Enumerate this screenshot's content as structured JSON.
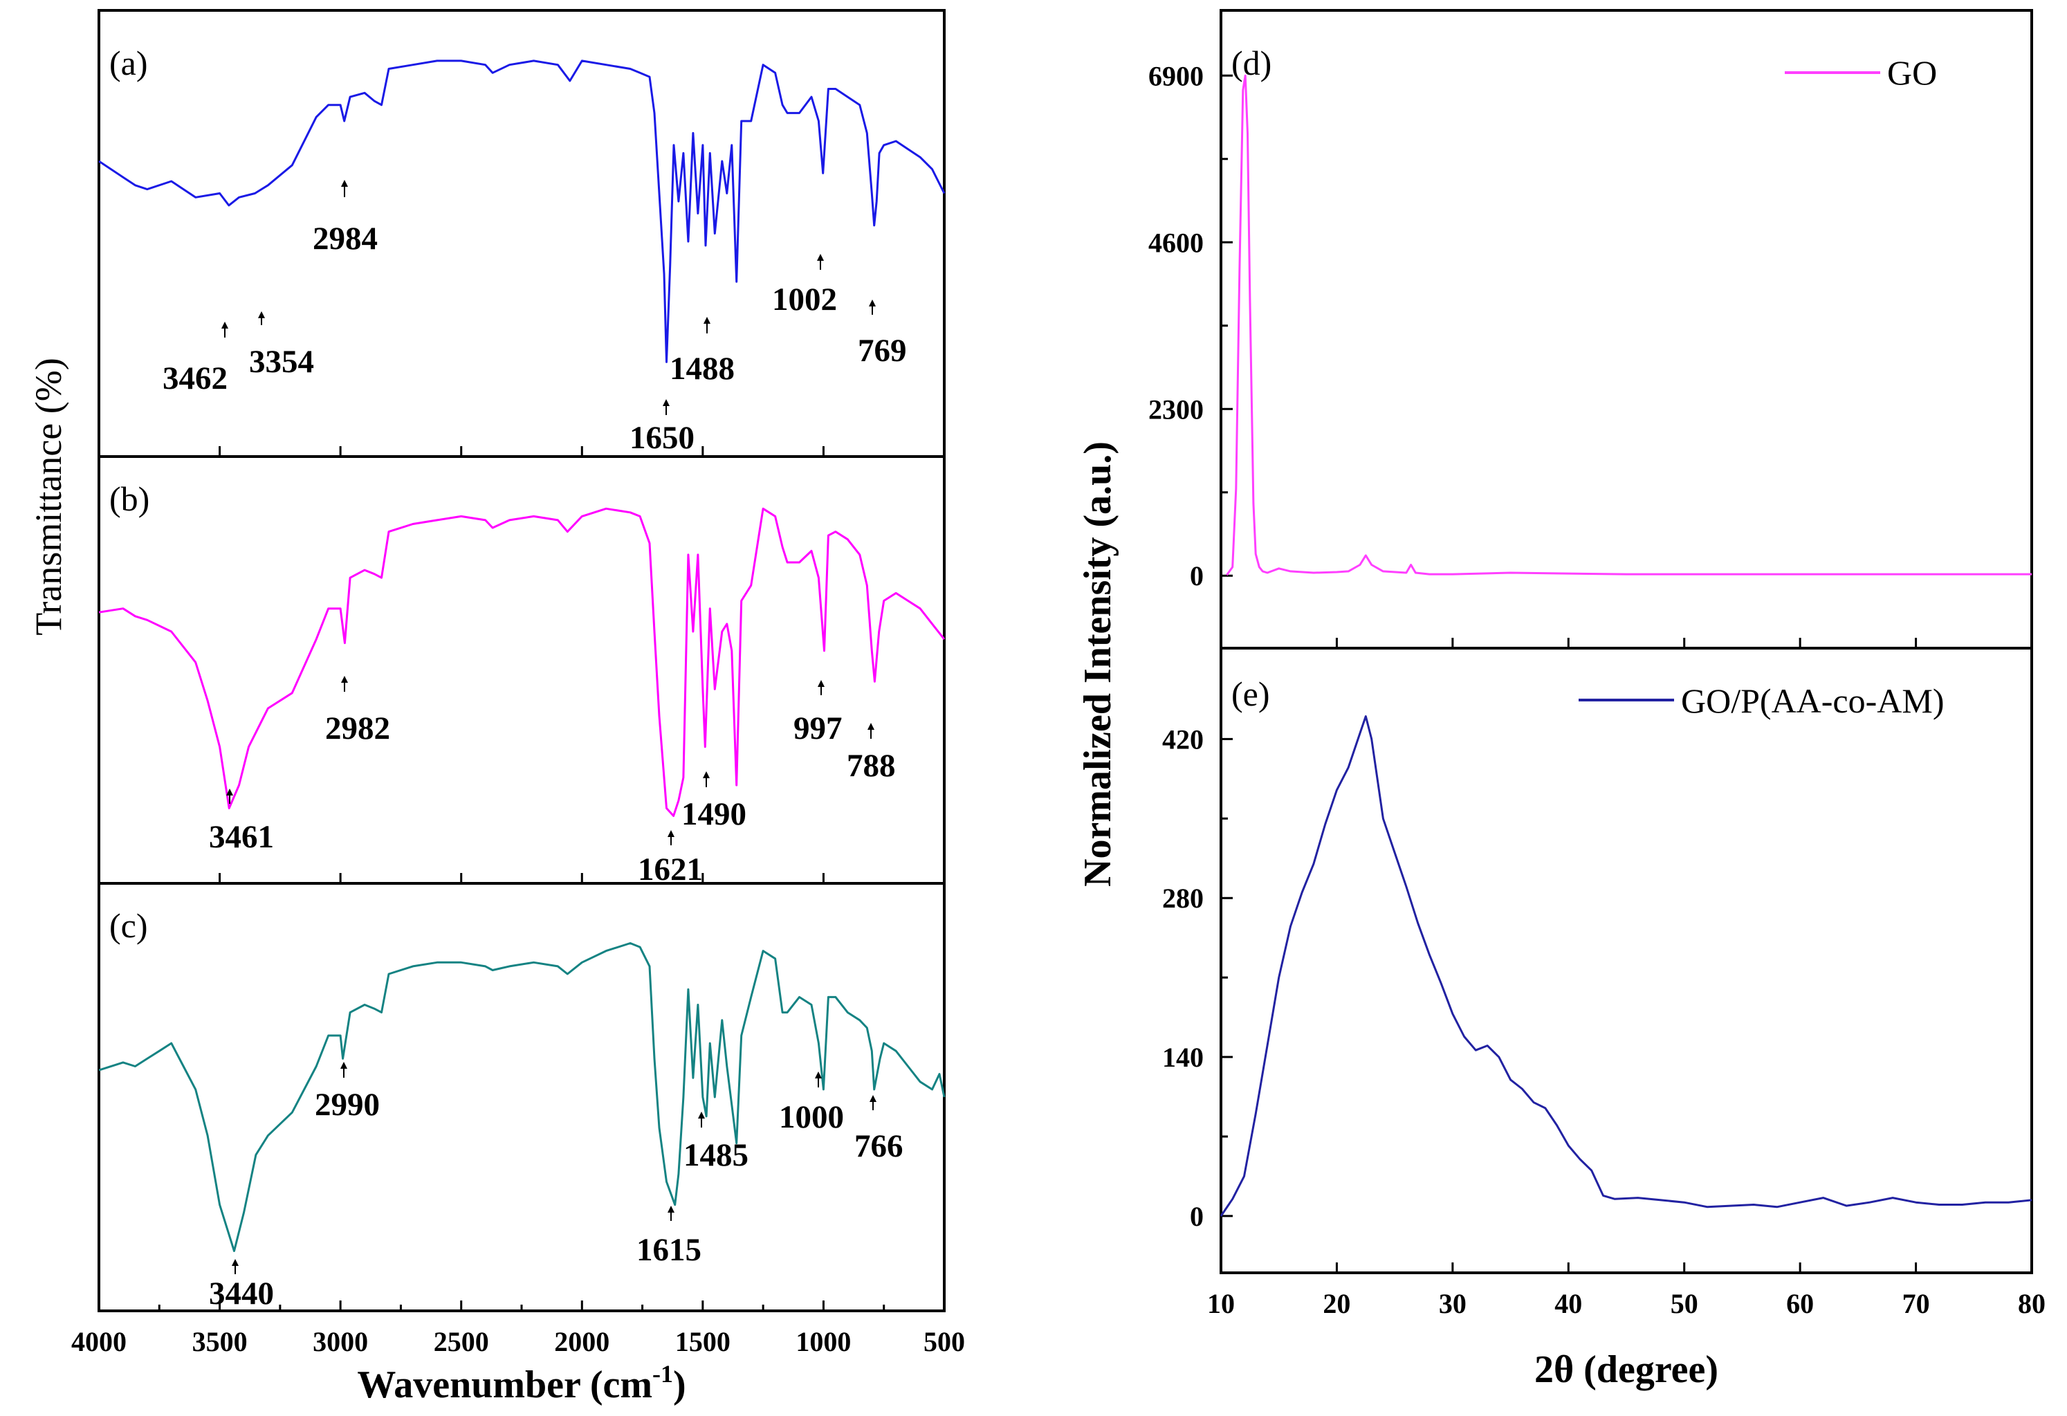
{
  "chart_data": [
    {
      "type": "line",
      "panel": "(a)",
      "xlabel": "Wavenumber (cm",
      "xlabel_sup": "-1",
      "xlabel_end": ")",
      "ylabel": "Transmittance (%)",
      "xlim": [
        4000,
        500
      ],
      "xticks": [
        4000,
        3500,
        3000,
        2500,
        2000,
        1500,
        1000,
        500
      ],
      "color": "#1a1ae6",
      "series": [
        {
          "name": "(a)",
          "x": [
            4000,
            3900,
            3850,
            3800,
            3700,
            3600,
            3500,
            3462,
            3420,
            3354,
            3300,
            3200,
            3100,
            3050,
            3000,
            2984,
            2960,
            2900,
            2860,
            2830,
            2800,
            2700,
            2600,
            2500,
            2400,
            2370,
            2300,
            2200,
            2100,
            2050,
            2000,
            1900,
            1800,
            1760,
            1720,
            1700,
            1680,
            1660,
            1650,
            1635,
            1620,
            1600,
            1580,
            1560,
            1540,
            1520,
            1500,
            1488,
            1470,
            1450,
            1420,
            1400,
            1380,
            1360,
            1340,
            1300,
            1250,
            1200,
            1170,
            1150,
            1100,
            1050,
            1020,
            1002,
            980,
            950,
            900,
            850,
            820,
            800,
            790,
            780,
            769,
            750,
            700,
            650,
            600,
            550,
            500
          ],
          "y": [
            68,
            64,
            62,
            61,
            63,
            59,
            60,
            57,
            59,
            60,
            62,
            67,
            79,
            82,
            82,
            78,
            84,
            85,
            83,
            82,
            91,
            92,
            93,
            93,
            92,
            90,
            92,
            93,
            92,
            88,
            93,
            92,
            91,
            90,
            89,
            80,
            60,
            40,
            18,
            42,
            72,
            58,
            70,
            48,
            75,
            55,
            72,
            47,
            70,
            50,
            68,
            60,
            72,
            38,
            78,
            78,
            92,
            90,
            82,
            80,
            80,
            84,
            78,
            65,
            86,
            86,
            84,
            82,
            75,
            60,
            52,
            58,
            70,
            72,
            73,
            71,
            69,
            66,
            60
          ]
        }
      ],
      "peaks": [
        "2984",
        "3462",
        "3354",
        "1650",
        "1488",
        "1002",
        "769"
      ]
    },
    {
      "type": "line",
      "panel": "(b)",
      "color": "#ff00ff",
      "series": [
        {
          "name": "(b)",
          "x": [
            4000,
            3900,
            3850,
            3800,
            3700,
            3600,
            3550,
            3500,
            3461,
            3420,
            3380,
            3300,
            3200,
            3100,
            3050,
            3000,
            2982,
            2960,
            2900,
            2860,
            2830,
            2800,
            2700,
            2600,
            2500,
            2400,
            2370,
            2300,
            2200,
            2100,
            2060,
            2000,
            1900,
            1800,
            1760,
            1720,
            1700,
            1680,
            1650,
            1621,
            1600,
            1580,
            1560,
            1540,
            1520,
            1500,
            1490,
            1470,
            1450,
            1420,
            1400,
            1380,
            1360,
            1340,
            1300,
            1250,
            1200,
            1170,
            1150,
            1100,
            1050,
            1020,
            997,
            980,
            950,
            900,
            850,
            820,
            800,
            788,
            770,
            750,
            700,
            650,
            600,
            550,
            500
          ],
          "y": [
            65,
            66,
            64,
            63,
            60,
            52,
            42,
            30,
            14,
            20,
            30,
            40,
            44,
            58,
            66,
            66,
            57,
            74,
            76,
            75,
            74,
            86,
            88,
            89,
            90,
            89,
            87,
            89,
            90,
            89,
            86,
            90,
            92,
            91,
            90,
            83,
            60,
            38,
            14,
            12,
            16,
            22,
            80,
            60,
            80,
            45,
            30,
            66,
            45,
            60,
            62,
            55,
            20,
            68,
            72,
            92,
            90,
            82,
            78,
            78,
            81,
            74,
            55,
            85,
            86,
            84,
            80,
            72,
            55,
            47,
            60,
            68,
            70,
            68,
            66,
            62,
            58
          ]
        }
      ],
      "peaks": [
        "2982",
        "3461",
        "1621",
        "1490",
        "997",
        "788"
      ]
    },
    {
      "type": "line",
      "panel": "(c)",
      "color": "#158383",
      "series": [
        {
          "name": "(c)",
          "x": [
            4000,
            3900,
            3850,
            3800,
            3750,
            3700,
            3650,
            3600,
            3550,
            3500,
            3440,
            3400,
            3350,
            3300,
            3200,
            3100,
            3050,
            3000,
            2990,
            2960,
            2900,
            2860,
            2830,
            2800,
            2700,
            2600,
            2500,
            2400,
            2370,
            2300,
            2200,
            2100,
            2060,
            2000,
            1900,
            1800,
            1760,
            1720,
            1700,
            1680,
            1650,
            1615,
            1600,
            1580,
            1560,
            1540,
            1520,
            1500,
            1485,
            1470,
            1450,
            1420,
            1400,
            1380,
            1360,
            1340,
            1300,
            1250,
            1200,
            1170,
            1150,
            1100,
            1050,
            1020,
            1000,
            980,
            950,
            900,
            850,
            820,
            800,
            790,
            766,
            750,
            700,
            650,
            600,
            550,
            520,
            500
          ],
          "y": [
            57,
            59,
            58,
            60,
            62,
            64,
            58,
            52,
            40,
            22,
            10,
            20,
            35,
            40,
            46,
            58,
            66,
            66,
            60,
            72,
            74,
            73,
            72,
            82,
            84,
            85,
            85,
            84,
            83,
            84,
            85,
            84,
            82,
            85,
            88,
            90,
            89,
            84,
            60,
            42,
            28,
            22,
            30,
            50,
            78,
            55,
            74,
            50,
            45,
            64,
            50,
            70,
            58,
            48,
            38,
            66,
            76,
            88,
            86,
            72,
            72,
            76,
            74,
            64,
            52,
            76,
            76,
            72,
            70,
            68,
            62,
            52,
            60,
            64,
            62,
            58,
            54,
            52,
            56,
            50
          ]
        }
      ],
      "peaks": [
        "2990",
        "3440",
        "1615",
        "1485",
        "1000",
        "766"
      ]
    },
    {
      "type": "line",
      "panel": "(d)",
      "ylabel": "Normalized Intensity (a.u.)",
      "xlabel": "2θ (degree)",
      "xlim": [
        10,
        80
      ],
      "xticks": [
        10,
        20,
        30,
        40,
        50,
        60,
        70,
        80
      ],
      "ylim": [
        -1000,
        7800
      ],
      "yticks": [
        0,
        2300,
        4600,
        6900
      ],
      "color": "#ff40ff",
      "series": [
        {
          "name": "GO",
          "x": [
            10.5,
            11,
            11.3,
            11.6,
            11.9,
            12.1,
            12.3,
            12.5,
            12.8,
            13,
            13.3,
            13.6,
            14,
            15,
            16,
            18,
            20,
            21,
            22,
            22.5,
            23,
            24,
            26,
            26.4,
            26.8,
            28,
            30,
            35,
            40,
            45,
            50,
            55,
            60,
            65,
            70,
            75,
            80
          ],
          "y": [
            10,
            120,
            1200,
            4200,
            6700,
            6900,
            6100,
            3800,
            1000,
            300,
            120,
            60,
            40,
            100,
            60,
            40,
            50,
            60,
            150,
            280,
            150,
            60,
            40,
            150,
            40,
            20,
            20,
            40,
            30,
            20,
            20,
            20,
            20,
            20,
            20,
            20,
            20
          ]
        }
      ]
    },
    {
      "type": "line",
      "panel": "(e)",
      "xlim": [
        10,
        80
      ],
      "ylim": [
        -50,
        500
      ],
      "yticks": [
        0,
        140,
        280,
        420
      ],
      "color": "#2222a2",
      "series": [
        {
          "name": "GO/P(AA-co-AM)",
          "x": [
            10,
            11,
            12,
            13,
            14,
            15,
            16,
            17,
            18,
            19,
            20,
            21,
            22,
            22.5,
            23,
            24,
            25,
            26,
            27,
            28,
            29,
            30,
            31,
            32,
            33,
            34,
            35,
            36,
            37,
            38,
            39,
            40,
            41,
            42,
            43,
            44,
            46,
            48,
            50,
            52,
            54,
            56,
            58,
            60,
            62,
            64,
            66,
            68,
            70,
            72,
            74,
            76,
            78,
            80
          ],
          "y": [
            0,
            15,
            35,
            90,
            150,
            210,
            255,
            285,
            310,
            345,
            375,
            395,
            425,
            440,
            420,
            350,
            320,
            290,
            258,
            230,
            205,
            178,
            158,
            146,
            150,
            140,
            120,
            112,
            100,
            95,
            80,
            62,
            50,
            40,
            18,
            15,
            16,
            14,
            12,
            8,
            9,
            10,
            8,
            12,
            16,
            9,
            12,
            16,
            12,
            10,
            10,
            12,
            12,
            14
          ]
        }
      ]
    }
  ],
  "legend": {
    "d": "GO",
    "e": "GO/P(AA-co-AM)"
  }
}
